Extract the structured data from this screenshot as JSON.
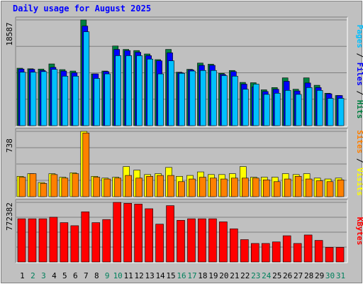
{
  "chart_data": {
    "type": "bar",
    "title": "Daily usage for August 2025",
    "days": [
      1,
      2,
      3,
      4,
      5,
      6,
      7,
      8,
      9,
      10,
      11,
      12,
      13,
      14,
      15,
      16,
      17,
      18,
      19,
      20,
      21,
      22,
      23,
      24,
      25,
      26,
      27,
      28,
      29,
      30,
      31
    ],
    "weekend_days": [
      2,
      3,
      9,
      10,
      16,
      17,
      23,
      24,
      30,
      31
    ],
    "panels": [
      {
        "id": "hits-files-pages",
        "max_label": "18587",
        "ymax": 18587,
        "side_labels": [
          {
            "text": "Pages",
            "color": "#00c0ff"
          },
          {
            "text": " / ",
            "color": "#000000"
          },
          {
            "text": "Files",
            "color": "#0000ff"
          },
          {
            "text": " / ",
            "color": "#000000"
          },
          {
            "text": "Hits",
            "color": "#008040"
          }
        ],
        "series": [
          {
            "name": "Hits",
            "color": "#008040",
            "values": [
              10100,
              10000,
              9950,
              10850,
              9850,
              9600,
              18587,
              9100,
              9600,
              14000,
              13400,
              13200,
              12600,
              11600,
              13400,
              9400,
              9900,
              11000,
              10800,
              9200,
              9700,
              7600,
              7550,
              6300,
              6700,
              8400,
              6400,
              8400,
              7100,
              5700,
              5300
            ]
          },
          {
            "name": "Files",
            "color": "#0000ff",
            "values": [
              9950,
              9900,
              9700,
              10250,
              9600,
              9300,
              17500,
              9100,
              9500,
              13400,
              13200,
              12900,
              12300,
              11400,
              12800,
              9300,
              9800,
              10600,
              10600,
              9000,
              9500,
              7300,
              6800,
              6000,
              6400,
              7800,
              6100,
              7500,
              6700,
              5600,
              5300
            ]
          },
          {
            "name": "Pages",
            "color": "#00c0ff",
            "values": [
              9400,
              9400,
              9500,
              9900,
              8700,
              8700,
              16500,
              8300,
              9100,
              12300,
              12300,
              12300,
              11700,
              9100,
              11400,
              9200,
              9600,
              9700,
              9700,
              8800,
              8700,
              6400,
              7300,
              5500,
              5700,
              6200,
              5500,
              6700,
              6200,
              4800,
              4800
            ]
          }
        ]
      },
      {
        "id": "visits-sites",
        "max_label": "738",
        "ymax": 738,
        "side_labels": [
          {
            "text": "Sites",
            "color": "#ff8000"
          },
          {
            "text": " / ",
            "color": "#000000"
          },
          {
            "text": "Visits",
            "color": "#ffff00"
          }
        ],
        "series": [
          {
            "name": "Visits",
            "color": "#ffff00",
            "values": [
              230,
              260,
              160,
              260,
              220,
              270,
              738,
              230,
              210,
              220,
              340,
              300,
              250,
              260,
              330,
              230,
              240,
              280,
              250,
              250,
              260,
              340,
              220,
              220,
              220,
              260,
              250,
              260,
              210,
              200,
              210
            ]
          },
          {
            "name": "Sites",
            "color": "#ff8000",
            "values": [
              220,
              260,
              150,
              250,
              210,
              260,
              720,
              220,
              200,
              210,
              240,
              210,
              230,
              240,
              240,
              170,
              200,
              220,
              210,
              200,
              210,
              210,
              210,
              190,
              170,
              200,
              230,
              200,
              180,
              170,
              190
            ]
          }
        ]
      },
      {
        "id": "kbytes",
        "max_label": "772382",
        "ymax": 772382,
        "side_labels": [
          {
            "text": "KBytes",
            "color": "#ff0000"
          }
        ],
        "series": [
          {
            "name": "KBytes",
            "color": "#ff0000",
            "values": [
              560000,
              560000,
              560000,
              580000,
              510000,
              470000,
              650000,
              510000,
              550000,
              772382,
              760000,
              750000,
              690000,
              490000,
              730000,
              540000,
              560000,
              560000,
              560000,
              520000,
              430000,
              290000,
              240000,
              240000,
              260000,
              340000,
              240000,
              350000,
              280000,
              190000,
              190000
            ]
          }
        ]
      }
    ],
    "colors": {
      "background": "#c0c0c0",
      "weekday_label": "#000000",
      "weekend_label": "#00805c",
      "gridline": "#808080"
    }
  }
}
